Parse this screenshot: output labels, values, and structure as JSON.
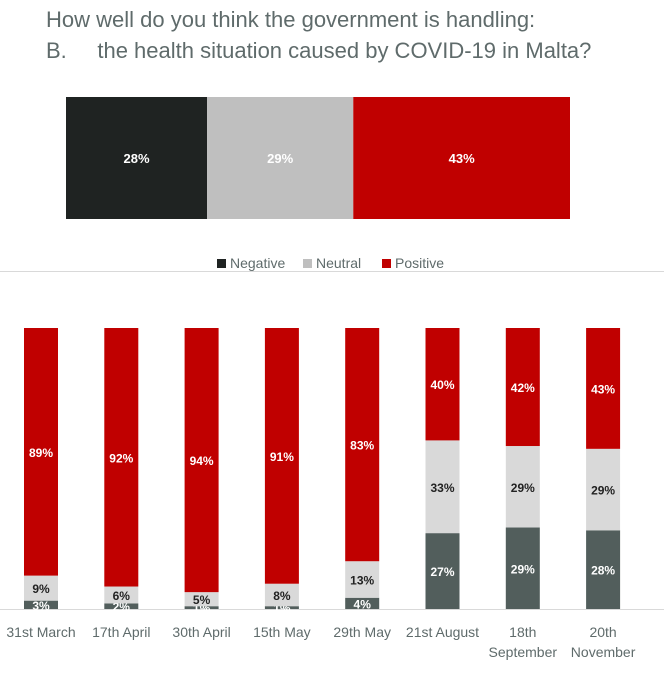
{
  "title_line1": "How well do you think the government is handling:",
  "title_line2": "B.     the health situation caused by COVID-19 in Malta?",
  "colors": {
    "negative_top": "#1f2322",
    "neutral_top": "#bfbfbf",
    "negative": "#525e5c",
    "neutral": "#d9d9d9",
    "positive": "#c00000"
  },
  "chart_data": [
    {
      "type": "bar",
      "stacked": true,
      "orientation": "horizontal",
      "title": "",
      "series": [
        {
          "name": "Negative",
          "values": [
            28
          ],
          "label": "28%"
        },
        {
          "name": "Neutral",
          "values": [
            29
          ],
          "label": "29%"
        },
        {
          "name": "Positive",
          "values": [
            43
          ],
          "label": "43%"
        }
      ]
    },
    {
      "type": "bar",
      "stacked": true,
      "legend": "top",
      "legend_entries": [
        "Negative",
        "Neutral",
        "Positive"
      ],
      "categories": [
        "31st March",
        "17th April",
        "30th April",
        "15th May",
        "29th May",
        "21st August",
        "18th September",
        "20th November"
      ],
      "category_lines": [
        [
          "31st March"
        ],
        [
          "17th April"
        ],
        [
          "30th April"
        ],
        [
          "15th May"
        ],
        [
          "29th May"
        ],
        [
          "21st August"
        ],
        [
          "18th",
          "September"
        ],
        [
          "20th",
          "November"
        ]
      ],
      "series": [
        {
          "name": "Negative",
          "values": [
            3,
            2,
            1,
            1,
            4,
            27,
            29,
            28
          ]
        },
        {
          "name": "Neutral",
          "values": [
            9,
            6,
            5,
            8,
            13,
            33,
            29,
            29
          ]
        },
        {
          "name": "Positive",
          "values": [
            89,
            92,
            94,
            91,
            83,
            40,
            42,
            43
          ]
        }
      ],
      "ylim": [
        0,
        100
      ]
    }
  ]
}
